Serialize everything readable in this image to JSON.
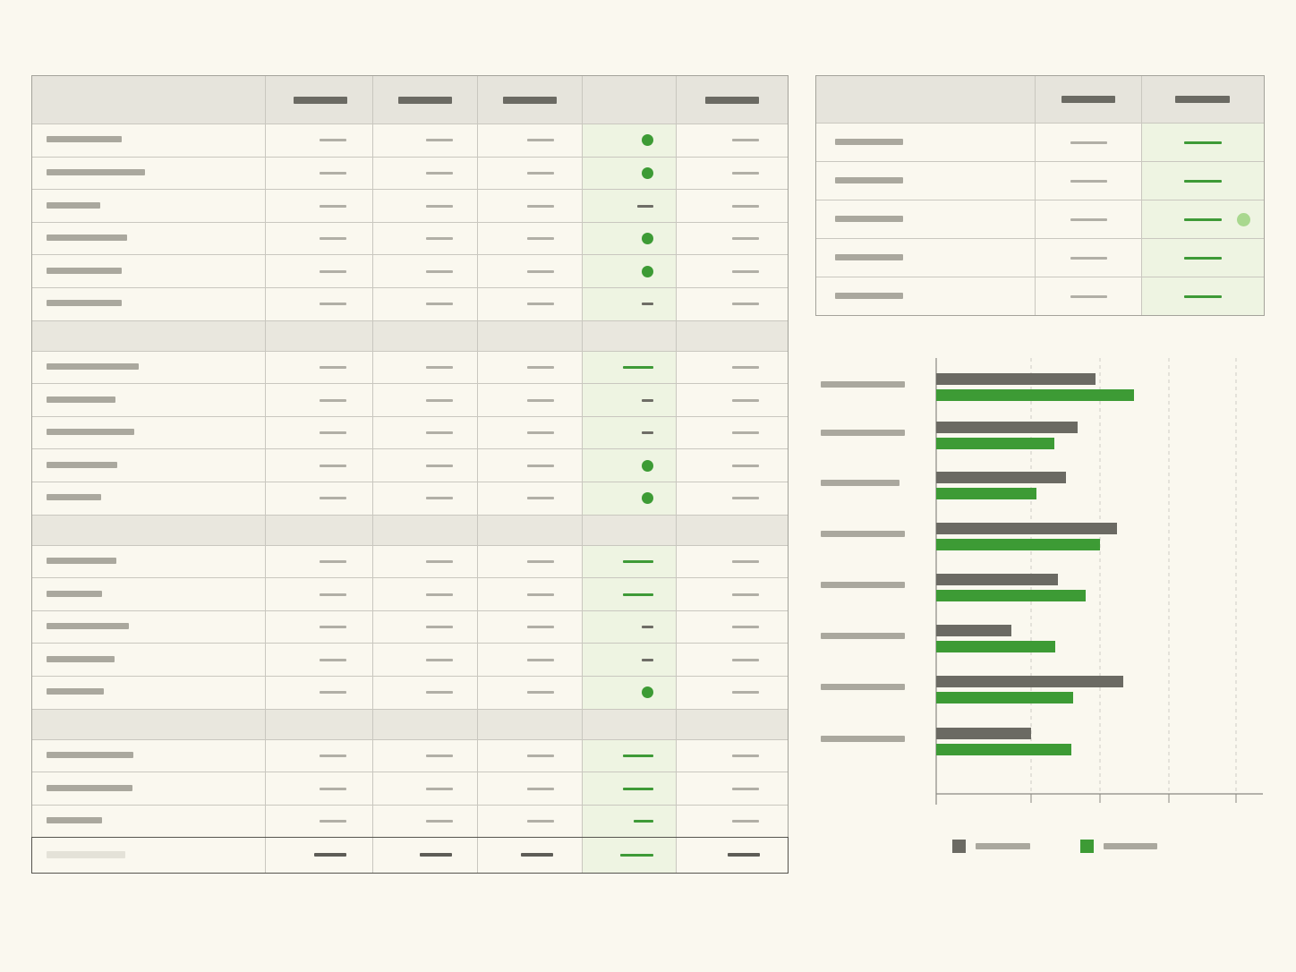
{
  "main_table": {
    "columns": 6,
    "rows": [
      {
        "type": "data",
        "label_w": 84,
        "status": "dot"
      },
      {
        "type": "data",
        "label_w": 110,
        "status": "dot"
      },
      {
        "type": "data",
        "label_w": 60,
        "status": "dash-dark"
      },
      {
        "type": "data",
        "label_w": 90,
        "status": "dot"
      },
      {
        "type": "data",
        "label_w": 84,
        "status": "dot"
      },
      {
        "type": "data",
        "label_w": 84,
        "status": "dash-dark-short"
      },
      {
        "type": "group"
      },
      {
        "type": "data",
        "label_w": 103,
        "status": "dash-green"
      },
      {
        "type": "data",
        "label_w": 77,
        "status": "dash-dark-short"
      },
      {
        "type": "data",
        "label_w": 98,
        "status": "dash-dark-short"
      },
      {
        "type": "data",
        "label_w": 79,
        "status": "dot"
      },
      {
        "type": "data",
        "label_w": 61,
        "status": "dot"
      },
      {
        "type": "group"
      },
      {
        "type": "data",
        "label_w": 78,
        "status": "dash-green"
      },
      {
        "type": "data",
        "label_w": 62,
        "status": "dash-green"
      },
      {
        "type": "data",
        "label_w": 92,
        "status": "dash-dark-short"
      },
      {
        "type": "data",
        "label_w": 76,
        "status": "dash-dark-short"
      },
      {
        "type": "data",
        "label_w": 64,
        "status": "dot"
      },
      {
        "type": "group"
      },
      {
        "type": "data",
        "label_w": 97,
        "status": "dash-green"
      },
      {
        "type": "data",
        "label_w": 96,
        "status": "dash-green"
      },
      {
        "type": "data",
        "label_w": 62,
        "status": "dash-green-short"
      },
      {
        "type": "total"
      }
    ]
  },
  "side_table": {
    "rows": [
      {
        "highlight": false
      },
      {
        "highlight": false
      },
      {
        "highlight": true
      },
      {
        "highlight": false
      },
      {
        "highlight": false
      }
    ]
  },
  "chart_data": {
    "type": "bar",
    "orientation": "horizontal",
    "categories": [
      "",
      "",
      "",
      "",
      "",
      "",
      "",
      ""
    ],
    "series": [
      {
        "color": "#6b6a63",
        "values": [
          178,
          158,
          145,
          202,
          136,
          84,
          209,
          106
        ]
      },
      {
        "color": "#3d9b35",
        "values": [
          221,
          132,
          112,
          183,
          167,
          133,
          153,
          151
        ]
      }
    ],
    "xlim": [
      0,
      365
    ],
    "grid": "vertical-dashed",
    "legend": "bottom"
  },
  "colors": {
    "accent_green": "#3d9b35",
    "dark_gray": "#6b6a63",
    "background": "#faf8ef"
  }
}
